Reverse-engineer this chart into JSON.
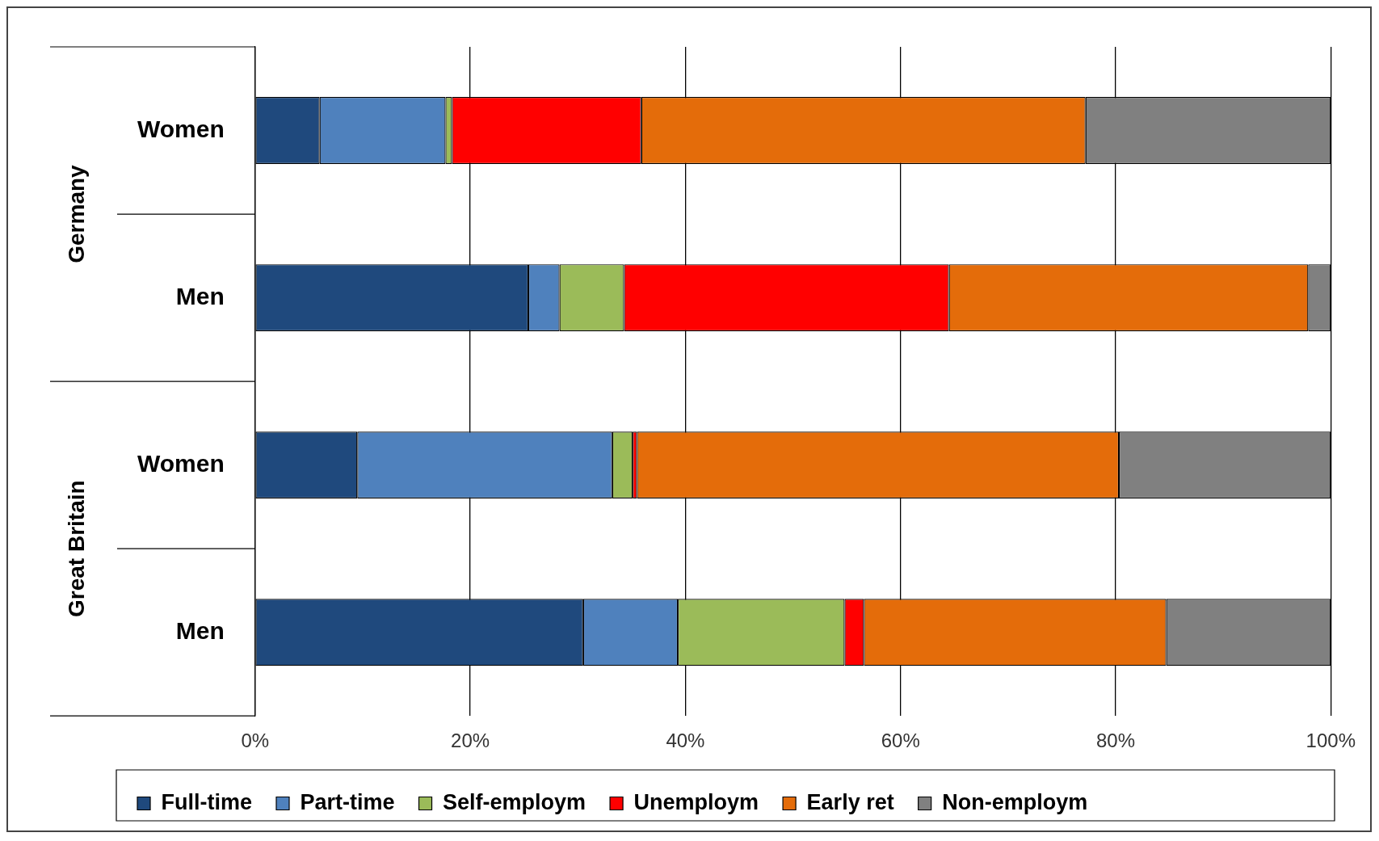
{
  "chart_data": {
    "type": "bar",
    "orientation": "horizontal",
    "stacked": true,
    "categories": [
      "Women",
      "Men",
      "Women",
      "Men"
    ],
    "annotations": [
      "Germany",
      "Great Britain"
    ],
    "series": [
      {
        "name": "Full-time",
        "color": "#1f497d",
        "values": [
          6.0,
          25.4,
          9.5,
          30.5
        ]
      },
      {
        "name": "Part-time",
        "color": "#4f81bd",
        "values": [
          11.7,
          2.9,
          23.7,
          8.8
        ]
      },
      {
        "name": "Self-employm",
        "color": "#9bbb59",
        "values": [
          0.6,
          6.0,
          1.9,
          15.5
        ]
      },
      {
        "name": "Unemploym",
        "color": "#ff0000",
        "values": [
          17.6,
          30.2,
          0.4,
          1.8
        ]
      },
      {
        "name": "Early ret",
        "color": "#e46c0a",
        "values": [
          41.3,
          33.4,
          44.8,
          28.1
        ]
      },
      {
        "name": "Non-employm",
        "color": "#808080",
        "values": [
          22.8,
          2.1,
          19.7,
          15.3
        ]
      }
    ],
    "xlim": [
      0,
      100
    ],
    "xticks": [
      {
        "value": 0,
        "label": "0%"
      },
      {
        "value": 20,
        "label": "20%"
      },
      {
        "value": 40,
        "label": "40%"
      },
      {
        "value": 60,
        "label": "60%"
      },
      {
        "value": 80,
        "label": "80%"
      },
      {
        "value": 100,
        "label": "100%"
      }
    ],
    "grid": "x",
    "legend": "bottom"
  }
}
